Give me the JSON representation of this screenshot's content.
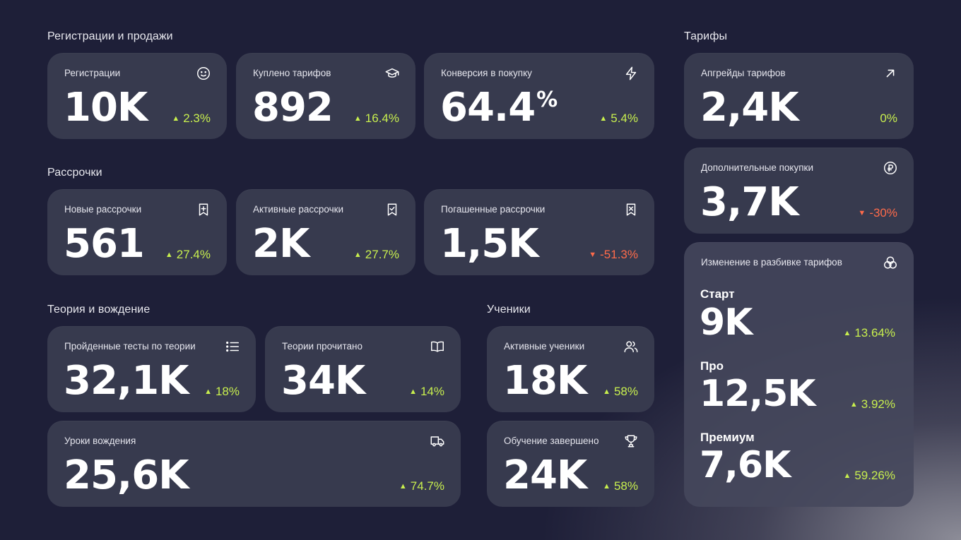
{
  "sections": {
    "sales": "Регистрации и продажи",
    "installments": "Рассрочки",
    "theory": "Теория и вождение",
    "students": "Ученики",
    "tariffs": "Тарифы"
  },
  "arrows": {
    "up": "▲",
    "down": "▼"
  },
  "cards": {
    "registrations": {
      "label": "Регистрации",
      "value": "10K",
      "delta": "2.3%",
      "icon": "smile-icon"
    },
    "tariffs_bought": {
      "label": "Куплено тарифов",
      "value": "892",
      "delta": "16.4%",
      "icon": "graduation-cap-icon"
    },
    "conversion": {
      "label": "Конверсия в покупку",
      "value": "64.4",
      "unit": "%",
      "delta": "5.4%",
      "icon": "lightning-icon"
    },
    "new_installments": {
      "label": "Новые рассрочки",
      "value": "561",
      "delta": "27.4%",
      "icon": "bookmark-plus-icon"
    },
    "active_installments": {
      "label": "Активные рассрочки",
      "value": "2K",
      "delta": "27.7%",
      "icon": "bookmark-check-icon"
    },
    "paid_installments": {
      "label": "Погашенные рассрочки",
      "value": "1,5K",
      "delta": "-51.3%",
      "icon": "bookmark-x-icon"
    },
    "theory_tests": {
      "label": "Пройденные тесты по теории",
      "value": "32,1K",
      "delta": "18%",
      "icon": "list-icon"
    },
    "theory_read": {
      "label": "Теории прочитано",
      "value": "34K",
      "delta": "14%",
      "icon": "open-book-icon"
    },
    "driving_lessons": {
      "label": "Уроки вождения",
      "value": "25,6K",
      "delta": "74.7%",
      "icon": "truck-icon"
    },
    "active_students": {
      "label": "Активные ученики",
      "value": "18K",
      "delta": "58%",
      "icon": "users-icon"
    },
    "training_completed": {
      "label": "Обучение завершено",
      "value": "24K",
      "delta": "58%",
      "icon": "trophy-icon"
    },
    "upgrades": {
      "label": "Апгрейды тарифов",
      "value": "2,4K",
      "delta": "0%",
      "icon": "arrow-up-right-icon"
    },
    "extra_purchases": {
      "label": "Дополнительные покупки",
      "value": "3,7K",
      "delta": "-30%",
      "icon": "ruble-icon"
    }
  },
  "breakdown": {
    "label": "Изменение в разбивке тарифов",
    "icon": "circles-icon",
    "tiers": [
      {
        "name": "Старт",
        "value": "9K",
        "delta": "13.64%"
      },
      {
        "name": "Про",
        "value": "12,5K",
        "delta": "3.92%"
      },
      {
        "name": "Премиум",
        "value": "7,6K",
        "delta": "59.26%"
      }
    ]
  },
  "colors": {
    "up": "#c8ef4e",
    "down": "#ff6b4a",
    "card": "#373a4e",
    "background": "#1e1f38"
  }
}
